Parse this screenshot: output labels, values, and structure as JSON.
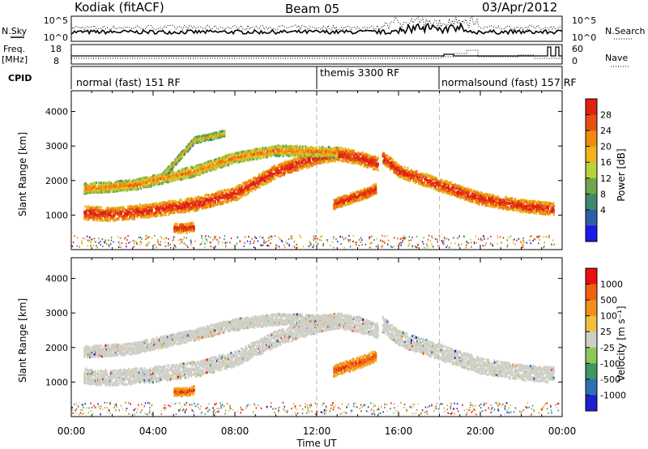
{
  "header": {
    "station": "Kodiak (fitACF)",
    "beam": "Beam 05",
    "date": "03/Apr/2012"
  },
  "nsky_panel": {
    "left_label": "N.Sky",
    "right_label": "N.Search",
    "y_ticks_left": [
      "10^5",
      "10^0"
    ],
    "y_ticks_right": [
      "10^5",
      "10^0"
    ]
  },
  "freq_panel": {
    "left_label_line1": "Freq.",
    "left_label_line2": "[MHz]",
    "right_label": "Nave",
    "y_ticks_left": [
      "18",
      "8"
    ],
    "y_ticks_right": [
      "60",
      "0"
    ]
  },
  "cpid": {
    "label": "CPID",
    "segments": [
      {
        "text": "normal (fast) 151 RF",
        "start_hour": 0
      },
      {
        "text": "themis 3300 RF",
        "start_hour": 12
      },
      {
        "text": "normalsound (fast) 157 RF",
        "start_hour": 18
      }
    ]
  },
  "power_colorbar": {
    "label": "Power [dB]",
    "ticks": [
      "28",
      "24",
      "20",
      "16",
      "12",
      "8",
      "4"
    ],
    "colors": [
      "#1a1ae6",
      "#2d5fa8",
      "#3f8a6a",
      "#6fa84a",
      "#b8d23a",
      "#f2b21a",
      "#f08a10",
      "#e65010",
      "#e02010"
    ]
  },
  "velocity_colorbar": {
    "label": "Velocity [m s⁻¹]",
    "ticks": [
      "1000",
      "500",
      "100",
      "25",
      "-25",
      "-100",
      "-500",
      "-1000"
    ],
    "colors": [
      "#1f1fcf",
      "#2f70b0",
      "#3e9860",
      "#8ec85a",
      "#cfcfc8",
      "#f0c040",
      "#f09018",
      "#f06010",
      "#e81010"
    ]
  },
  "chart_data": [
    {
      "type": "heatmap",
      "panel": "power",
      "ylabel": "Slant Range [km]",
      "yticks": [
        1000,
        2000,
        3000,
        4000
      ],
      "ylim": [
        0,
        4600
      ],
      "xlim": [
        0,
        24
      ],
      "x_ticks": [
        "00:00",
        "04:00",
        "08:00",
        "12:00",
        "16:00",
        "20:00",
        "00:00"
      ],
      "bands": [
        {
          "points": [
            [
              0.6,
              1100
            ],
            [
              2,
              1050
            ],
            [
              4,
              1180
            ],
            [
              6,
              1350
            ],
            [
              8,
              1650
            ],
            [
              10,
              2300
            ],
            [
              12,
              2700
            ],
            [
              13,
              2800
            ],
            [
              14,
              2700
            ],
            [
              15,
              2500
            ]
          ],
          "width": 260,
          "level": "high"
        },
        {
          "points": [
            [
              0.6,
              1800
            ],
            [
              3,
              1900
            ],
            [
              6,
              2300
            ],
            [
              8,
              2700
            ],
            [
              10,
              2900
            ],
            [
              13,
              2850
            ]
          ],
          "width": 200,
          "level": "mid"
        },
        {
          "points": [
            [
              15.2,
              2700
            ],
            [
              16,
              2300
            ],
            [
              17,
              2100
            ],
            [
              18,
              1900
            ],
            [
              19,
              1700
            ],
            [
              20,
              1500
            ],
            [
              21,
              1400
            ],
            [
              22,
              1300
            ],
            [
              23.6,
              1200
            ]
          ],
          "width": 240,
          "level": "high"
        },
        {
          "points": [
            [
              5,
              650
            ],
            [
              5.6,
              650
            ],
            [
              6,
              700
            ]
          ],
          "width": 180,
          "level": "high"
        },
        {
          "points": [
            [
              12.8,
              1350
            ],
            [
              14.3,
              1650
            ],
            [
              14.9,
              1800
            ]
          ],
          "width": 200,
          "level": "high"
        },
        {
          "points": [
            [
              4.5,
              2200
            ],
            [
              6,
              3200
            ],
            [
              7.5,
              3400
            ]
          ],
          "width": 120,
          "level": "low"
        }
      ]
    },
    {
      "type": "heatmap",
      "panel": "velocity",
      "ylabel": "Slant Range [km]",
      "xlabel": "Time UT",
      "yticks": [
        1000,
        2000,
        3000,
        4000
      ],
      "ylim": [
        0,
        4600
      ],
      "xlim": [
        0,
        24
      ],
      "x_ticks": [
        "00:00",
        "04:00",
        "08:00",
        "12:00",
        "16:00",
        "20:00",
        "00:00"
      ],
      "bands": [
        {
          "points": [
            [
              0.6,
              1200
            ],
            [
              2,
              1150
            ],
            [
              4,
              1250
            ],
            [
              6,
              1400
            ],
            [
              8,
              1700
            ],
            [
              10,
              2300
            ],
            [
              12,
              2700
            ],
            [
              13,
              2800
            ],
            [
              14,
              2700
            ],
            [
              15,
              2500
            ]
          ],
          "width": 300,
          "level": "ground"
        },
        {
          "points": [
            [
              0.6,
              1900
            ],
            [
              3,
              2000
            ],
            [
              6,
              2400
            ],
            [
              8,
              2700
            ],
            [
              10,
              2850
            ],
            [
              13,
              2800
            ]
          ],
          "width": 220,
          "level": "ground"
        },
        {
          "points": [
            [
              15.2,
              2700
            ],
            [
              16,
              2300
            ],
            [
              17,
              2100
            ],
            [
              18,
              1900
            ],
            [
              19,
              1700
            ],
            [
              20,
              1500
            ],
            [
              21,
              1400
            ],
            [
              22,
              1300
            ],
            [
              23.6,
              1250
            ]
          ],
          "width": 300,
          "level": "ground"
        },
        {
          "points": [
            [
              12.8,
              1350
            ],
            [
              14.3,
              1650
            ],
            [
              14.9,
              1800
            ]
          ],
          "width": 220,
          "level": "neg"
        },
        {
          "points": [
            [
              5,
              750
            ],
            [
              5.6,
              750
            ],
            [
              6,
              800
            ]
          ],
          "width": 160,
          "level": "neg"
        }
      ]
    }
  ]
}
